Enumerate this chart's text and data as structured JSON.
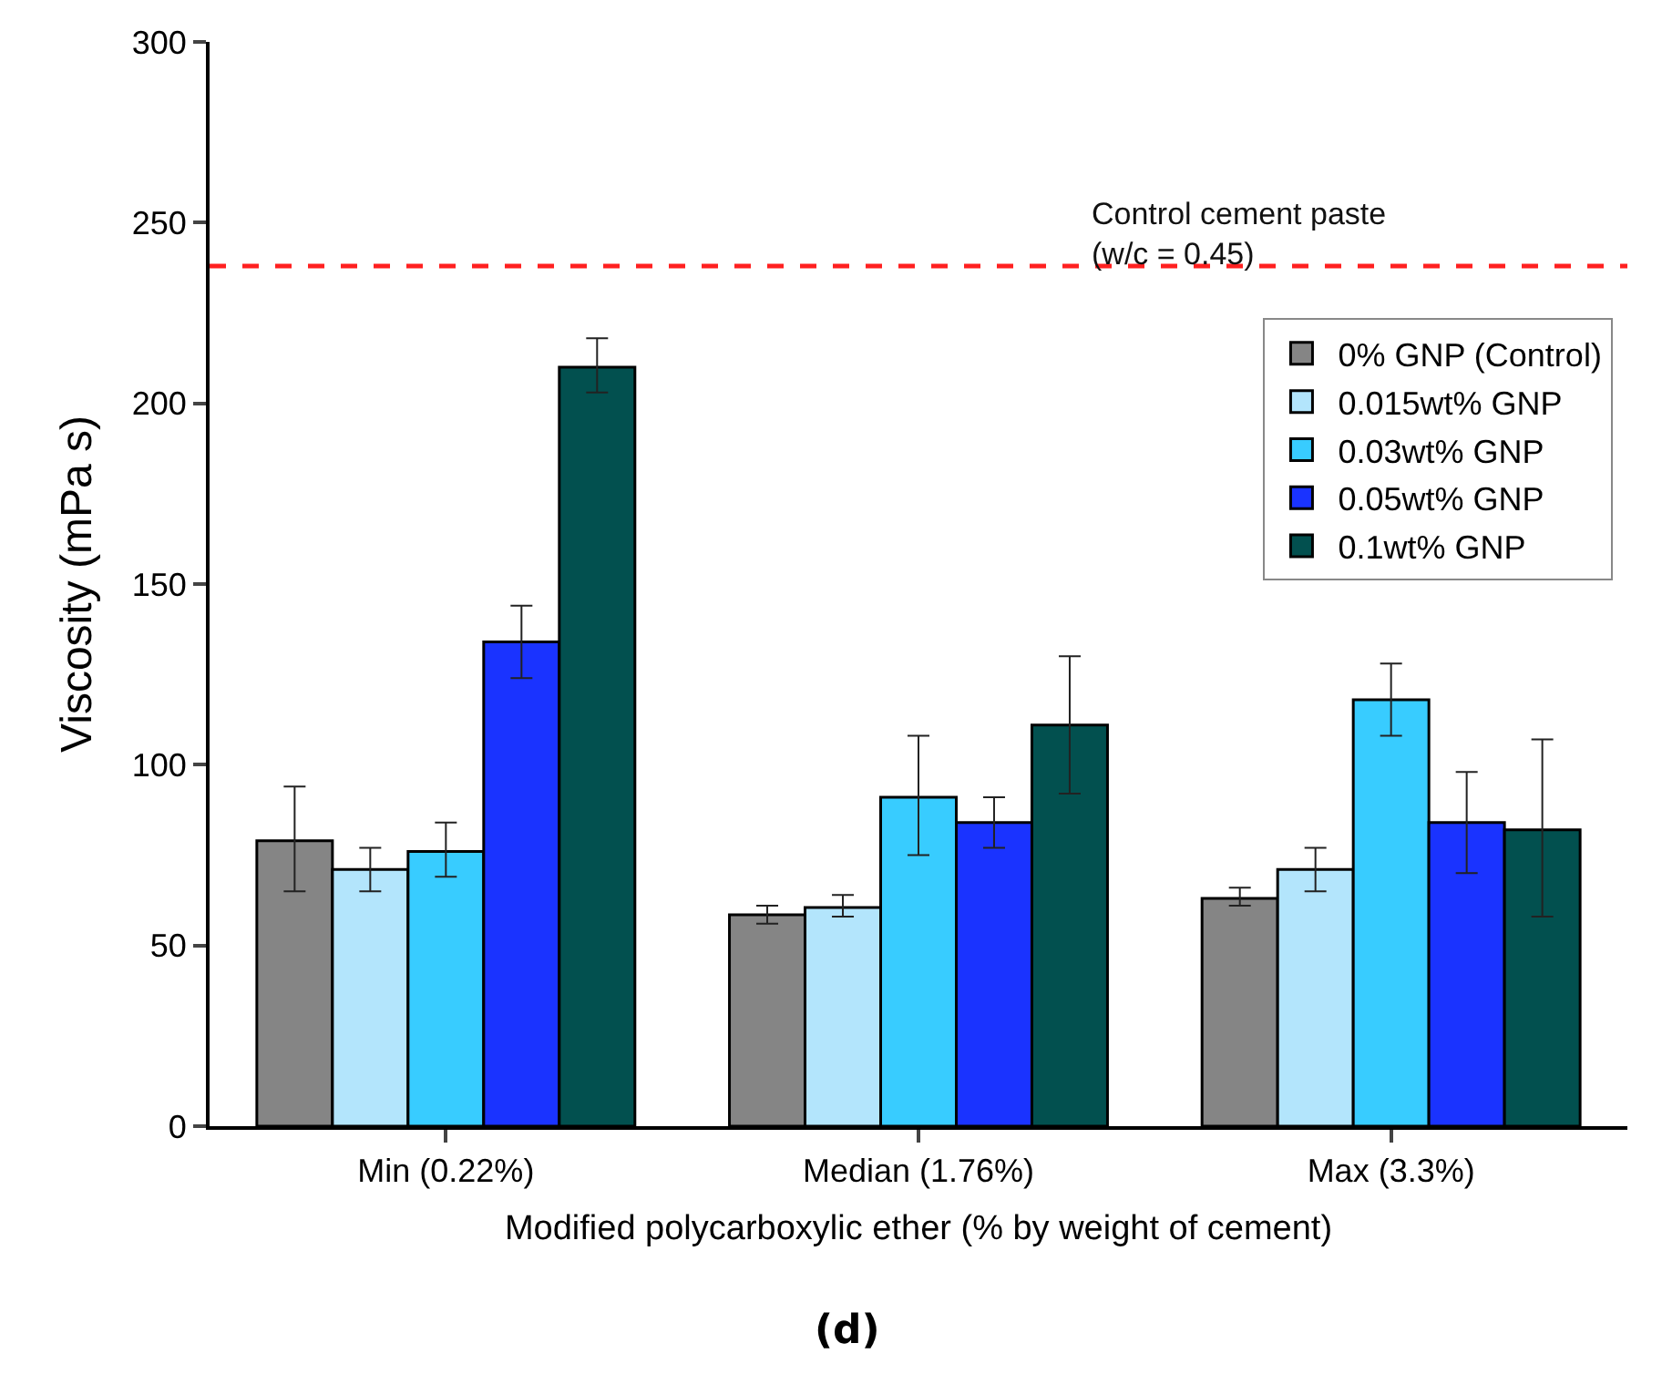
{
  "chart_data": {
    "type": "bar",
    "categories": [
      "Min (0.22%)",
      "Median (1.76%)",
      "Max (3.3%)"
    ],
    "xlabel": "Modified polycarboxylic ether (% by weight of cement)",
    "ylabel": "Viscosity (mPa s)",
    "ylim": [
      0,
      300
    ],
    "yticks": [
      0,
      50,
      100,
      150,
      200,
      250,
      300
    ],
    "legend": "top right",
    "series": [
      {
        "name": "0% GNP (Control)",
        "color": "#858585",
        "values": [
          79,
          58.5,
          63
        ],
        "errors": [
          [
            65,
            94
          ],
          [
            56,
            61
          ],
          [
            61,
            66
          ]
        ]
      },
      {
        "name": "0.015wt% GNP",
        "color": "#b3e5fc",
        "values": [
          71,
          60.5,
          71
        ],
        "errors": [
          [
            65,
            77
          ],
          [
            58,
            64
          ],
          [
            65,
            77
          ]
        ]
      },
      {
        "name": "0.03wt% GNP",
        "color": "#38ccff",
        "values": [
          76,
          91,
          118
        ],
        "errors": [
          [
            69,
            84
          ],
          [
            75,
            108
          ],
          [
            108,
            128
          ]
        ]
      },
      {
        "name": "0.05wt% GNP",
        "color": "#1a33ff",
        "values": [
          134,
          84,
          84
        ],
        "errors": [
          [
            124,
            144
          ],
          [
            77,
            91
          ],
          [
            70,
            98
          ]
        ]
      },
      {
        "name": "0.1wt% GNP",
        "color": "#02504f",
        "values": [
          210,
          111,
          82
        ],
        "errors": [
          [
            203,
            218
          ],
          [
            92,
            130
          ],
          [
            58,
            107
          ]
        ]
      }
    ],
    "ref_lines": [
      {
        "axis": "y",
        "value": 238,
        "color": "#ff2020",
        "line_style": "dashed"
      }
    ],
    "annotations": [
      "Control cement paste\n(w/c = 0.45)",
      "(d)"
    ]
  }
}
